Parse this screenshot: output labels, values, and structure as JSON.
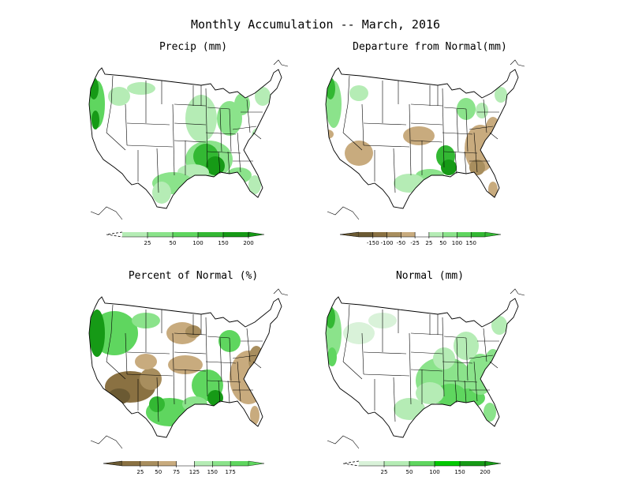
{
  "title": "Monthly Accumulation -- March, 2016",
  "colors": {
    "dg3": "#6b5a33",
    "dg2": "#8a7142",
    "dg1": "#a88e5e",
    "dg0": "#c8ab7e",
    "g1": "#d9f2d9",
    "g2": "#b5ecb5",
    "g3": "#8be38b",
    "g4": "#5fd65f",
    "g5": "#33b833",
    "g6": "#169a16",
    "g7": "#0f7a0f",
    "bright": "#00c800"
  },
  "panels": [
    {
      "id": "precip",
      "title": "Precip (mm)",
      "legend": {
        "ticks": [
          "25",
          "50",
          "100",
          "150",
          "200"
        ],
        "colors": [
          "g2",
          "g3",
          "g4",
          "g5",
          "g6"
        ],
        "left_arrow": "dashed"
      }
    },
    {
      "id": "departure",
      "title": "Departure from Normal(mm)",
      "legend": {
        "ticks": [
          "-150",
          "-100",
          "-50",
          "-25",
          "25",
          "50",
          "100",
          "150"
        ],
        "colors": [
          "dg3",
          "dg2",
          "dg1",
          "dg0",
          "white",
          "g2",
          "g3",
          "g4",
          "g5"
        ],
        "left_arrow": "brown"
      }
    },
    {
      "id": "percent",
      "title": "Percent of Normal (%)",
      "legend": {
        "ticks": [
          "25",
          "50",
          "75",
          "125",
          "150",
          "175"
        ],
        "colors": [
          "dg2",
          "dg1",
          "dg0",
          "white",
          "g2",
          "g3",
          "g4"
        ],
        "left_arrow": "brown"
      }
    },
    {
      "id": "normal",
      "title": "Normal (mm)",
      "legend": {
        "ticks": [
          "25",
          "50",
          "100",
          "150",
          "200"
        ],
        "colors": [
          "g1",
          "g2",
          "g4",
          "bright",
          "g6"
        ],
        "left_arrow": "dashed"
      }
    }
  ]
}
